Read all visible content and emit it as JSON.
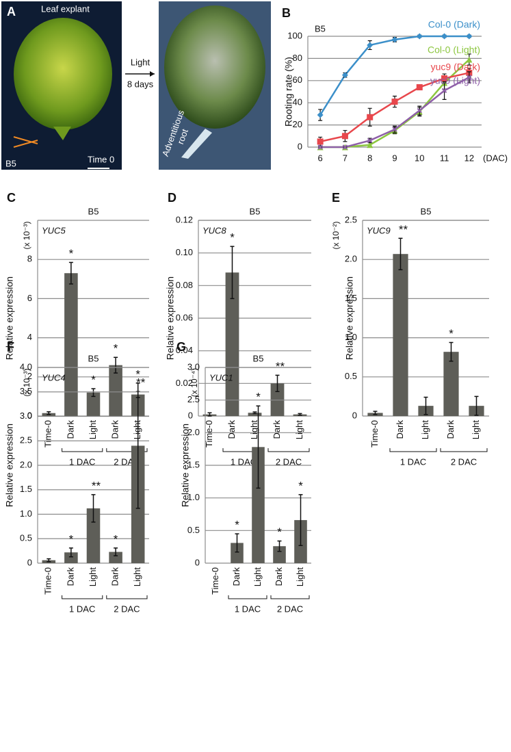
{
  "panel_a": {
    "label": "A",
    "left_image": {
      "caption": "Leaf explant",
      "tag": "B5",
      "scale": "Time 0"
    },
    "arrow": {
      "line1": "Light",
      "line2": "8 days"
    },
    "right_image": {
      "annotation": [
        "Adventitious",
        "root"
      ]
    }
  },
  "chart_data": [
    {
      "type": "line",
      "label": "B",
      "subtitle": "B5",
      "y_label": "Rooting rate (%)",
      "x_label": "(DAC)",
      "x": [
        6,
        7,
        8,
        9,
        10,
        11,
        12
      ],
      "xlim": [
        5.5,
        12.5
      ],
      "xticks": [
        6,
        7,
        8,
        9,
        10,
        11,
        12
      ],
      "ylim": [
        0,
        100
      ],
      "yticks": [
        0,
        20,
        40,
        60,
        80,
        100
      ],
      "grid": true,
      "series": [
        {
          "name": "Col-0 (Dark)",
          "color": "#3b8fc9",
          "marker": "diamond",
          "values": [
            29,
            65,
            92,
            97,
            100,
            100,
            100
          ],
          "errors": [
            5,
            2,
            4,
            2,
            1,
            1,
            1
          ]
        },
        {
          "name": "Col-0 (Light)",
          "color": "#8cc63f",
          "marker": "triangle",
          "values": [
            0,
            0,
            2,
            15,
            32,
            58,
            79
          ],
          "errors": [
            1,
            1,
            2,
            3,
            4,
            6,
            5
          ]
        },
        {
          "name": "yuc9 (Dark)",
          "color": "#e8474c",
          "marker": "square",
          "values": [
            5,
            10,
            27,
            41,
            54,
            62,
            67
          ],
          "errors": [
            4,
            5,
            8,
            5,
            2,
            4,
            4
          ]
        },
        {
          "name": "yuc9 (Light)",
          "color": "#8e5fa8",
          "marker": "cross",
          "values": [
            0,
            0,
            6,
            16,
            33,
            51,
            63
          ],
          "errors": [
            0,
            0,
            2,
            3,
            4,
            8,
            5
          ]
        }
      ]
    },
    {
      "type": "bar",
      "label": "C",
      "title": "B5",
      "gene": "YUC5",
      "scale_label": "(x 10⁻³)",
      "y_label": "Relative expression",
      "categories": [
        "Time-0",
        "Dark",
        "Light",
        "Dark",
        "Light"
      ],
      "groups": [
        "1 DAC",
        "2 DAC"
      ],
      "color": "#5e5e58",
      "values": [
        0.15,
        7.3,
        1.2,
        2.6,
        1.1
      ],
      "errors": [
        0.07,
        0.55,
        0.2,
        0.4,
        0.15
      ],
      "significance": [
        null,
        "*",
        "*",
        "*",
        "**"
      ],
      "ylim": [
        0,
        10
      ],
      "yticks": [
        0,
        2,
        4,
        6,
        8
      ],
      "grid": true
    },
    {
      "type": "bar",
      "label": "D",
      "title": "B5",
      "gene": "YUC8",
      "y_label": "Relative expression",
      "categories": [
        "Time-0",
        "Dark",
        "Light",
        "Dark",
        "Light"
      ],
      "groups": [
        "1 DAC",
        "2 DAC"
      ],
      "color": "#5e5e58",
      "values": [
        0.001,
        0.088,
        0.002,
        0.02,
        0.001
      ],
      "errors": [
        0.001,
        0.016,
        0.0005,
        0.005,
        0.0005
      ],
      "significance": [
        null,
        "*",
        null,
        "**",
        null
      ],
      "ylim": [
        0,
        0.12
      ],
      "yticks": [
        0,
        0.02,
        0.04,
        0.06,
        0.08,
        {
          "value": 0.1,
          "label": "0.10"
        },
        0.12
      ],
      "grid": true
    },
    {
      "type": "bar",
      "label": "E",
      "title": "B5",
      "gene": "YUC9",
      "scale_label": "(x 10⁻²)",
      "y_label": "Relative expression",
      "categories": [
        "Time-0",
        "Dark",
        "Light",
        "Dark",
        "Light"
      ],
      "groups": [
        "1 DAC",
        "2 DAC"
      ],
      "color": "#5e5e58",
      "values": [
        0.04,
        2.07,
        0.13,
        0.82,
        0.13
      ],
      "errors": [
        0.02,
        0.2,
        0.11,
        0.12,
        0.12
      ],
      "significance": [
        null,
        "**",
        null,
        "*",
        null
      ],
      "ylim": [
        0,
        2.5
      ],
      "yticks": [
        0,
        0.5,
        {
          "value": 1,
          "label": "1.0"
        },
        1.5,
        {
          "value": 2,
          "label": "2.0"
        },
        2.5
      ],
      "grid": true
    },
    {
      "type": "bar",
      "label": "F",
      "title": "B5",
      "gene": "YUC4",
      "scale_label": "(x 10⁻³)",
      "y_label": "Relative expression",
      "categories": [
        "Time-0",
        "Dark",
        "Light",
        "Dark",
        "Light"
      ],
      "groups": [
        "1 DAC",
        "2 DAC"
      ],
      "color": "#5e5e58",
      "values": [
        0.06,
        0.22,
        1.12,
        0.23,
        2.4
      ],
      "errors": [
        0.03,
        0.09,
        0.28,
        0.08,
        1.28
      ],
      "significance": [
        null,
        "*",
        "**",
        "*",
        "*"
      ],
      "ylim": [
        0,
        4
      ],
      "yticks": [
        0,
        0.5,
        {
          "value": 1,
          "label": "1.0"
        },
        1.5,
        {
          "value": 2,
          "label": "2.0"
        },
        2.5,
        {
          "value": 3,
          "label": "3.0"
        },
        3.5,
        {
          "value": 4,
          "label": "4.0"
        }
      ],
      "grid": true
    },
    {
      "type": "bar",
      "label": "G",
      "title": "B5",
      "gene": "YUC1",
      "scale_label": "(x 10⁻⁴)",
      "y_label": "Relative expression",
      "categories": [
        "Time-0",
        "Dark",
        "Light",
        "Dark",
        "Light"
      ],
      "groups": [
        "1 DAC",
        "2 DAC"
      ],
      "color": "#5e5e58",
      "values": [
        0,
        0.31,
        1.78,
        0.26,
        0.66
      ],
      "errors": [
        0,
        0.14,
        0.63,
        0.08,
        0.39
      ],
      "significance": [
        null,
        "*",
        "*",
        "*",
        "*"
      ],
      "ylim": [
        0,
        3
      ],
      "yticks": [
        0,
        0.5,
        {
          "value": 1,
          "label": "1.0"
        },
        1.5,
        {
          "value": 2,
          "label": "2.0"
        },
        2.5,
        {
          "value": 3,
          "label": "3.0"
        }
      ],
      "grid": true
    }
  ]
}
